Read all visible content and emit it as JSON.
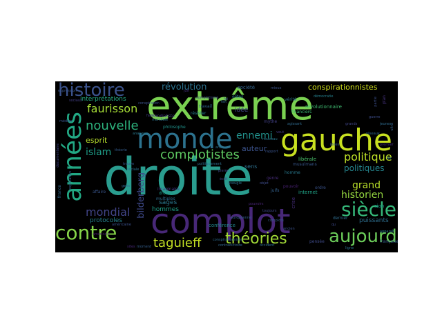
{
  "wordcloud": {
    "background": "#000000",
    "colormap": "viridis",
    "words": [
      {
        "text": "droite",
        "color": "#2a9d8f"
      },
      {
        "text": "extrême",
        "color": "#7ad151"
      },
      {
        "text": "complot",
        "color": "#482878"
      },
      {
        "text": "gauche",
        "color": "#c8e020"
      },
      {
        "text": "années",
        "color": "#22a884"
      },
      {
        "text": "monde",
        "color": "#2c728e"
      },
      {
        "text": "histoire",
        "color": "#3b528b"
      },
      {
        "text": "siècle",
        "color": "#35b779"
      },
      {
        "text": "contre",
        "color": "#86d549"
      },
      {
        "text": "aujourd",
        "color": "#6ccd5a"
      },
      {
        "text": "théories",
        "color": "#a2da37"
      },
      {
        "text": "taguieff",
        "color": "#c2df23"
      },
      {
        "text": "complotistes",
        "color": "#5ec962"
      },
      {
        "text": "nouvelle",
        "color": "#2db27d"
      },
      {
        "text": "faurisson",
        "color": "#a5db36"
      },
      {
        "text": "politique",
        "color": "#bddf26"
      },
      {
        "text": "historien",
        "color": "#95d840"
      },
      {
        "text": "mondial",
        "color": "#414487"
      },
      {
        "text": "islam",
        "color": "#1f9e89"
      },
      {
        "text": "ennemi",
        "color": "#21918c"
      },
      {
        "text": "grand",
        "color": "#b8de29"
      },
      {
        "text": "révolution",
        "color": "#2c728e"
      },
      {
        "text": "conspirationnistes",
        "color": "#d2e21b"
      },
      {
        "text": "politiques",
        "color": "#25858e"
      },
      {
        "text": "auteur",
        "color": "#3b528b"
      },
      {
        "text": "esprit",
        "color": "#b5de2b"
      },
      {
        "text": "bilderberg",
        "color": "#3e4989"
      },
      {
        "text": "sages",
        "color": "#2a788e"
      },
      {
        "text": "protocoles",
        "color": "#26828e"
      },
      {
        "text": "hommes",
        "color": "#1fa088"
      },
      {
        "text": "interprétations",
        "color": "#25ac82"
      },
      {
        "text": "conférence",
        "color": "#23898e"
      },
      {
        "text": "sens",
        "color": "#2d708e"
      },
      {
        "text": "idée",
        "color": "#3f4788"
      },
      {
        "text": "société",
        "color": "#33638d"
      },
      {
        "text": "libérale",
        "color": "#4ac16d"
      },
      {
        "text": "musulmans",
        "color": "#38588c"
      },
      {
        "text": "internet",
        "color": "#20a386"
      },
      {
        "text": "puissants",
        "color": "#2e6e8e"
      },
      {
        "text": "révolutionnaire",
        "color": "#40bd72"
      },
      {
        "text": "financiers",
        "color": "#3dbc74"
      },
      {
        "text": "mythe",
        "color": "#424086"
      },
      {
        "text": "élites",
        "color": "#287c8e"
      },
      {
        "text": "vérité",
        "color": "#2b758e"
      },
      {
        "text": "travail",
        "color": "#31678e"
      },
      {
        "text": "philosophe",
        "color": "#20938c"
      },
      {
        "text": "américain",
        "color": "#481a6c"
      },
      {
        "text": "affaire",
        "color": "#39558c"
      },
      {
        "text": "imaginaire",
        "color": "#443983"
      },
      {
        "text": "droites",
        "color": "#1e9c89"
      },
      {
        "text": "multiples",
        "color": "#2e6d8e"
      },
      {
        "text": "américaine",
        "color": "#3b518b"
      },
      {
        "text": "mondialiste",
        "color": "#453781"
      },
      {
        "text": "dernier",
        "color": "#2f6c8e"
      },
      {
        "text": "pensée",
        "color": "#3e4a89"
      },
      {
        "text": "française",
        "color": "#355e8d"
      },
      {
        "text": "crise",
        "color": "#472e7c"
      },
      {
        "text": "ordre",
        "color": "#3a538b"
      },
      {
        "text": "juifs",
        "color": "#34618d"
      },
      {
        "text": "pouvoir",
        "color": "#482173"
      },
      {
        "text": "homme",
        "color": "#29798e"
      },
      {
        "text": "sion",
        "color": "#1e9b8a"
      },
      {
        "text": "france",
        "color": "#31688e"
      },
      {
        "text": "démocratie",
        "color": "#26818e"
      },
      {
        "text": "mieux",
        "color": "#3b528b"
      },
      {
        "text": "analyses",
        "color": "#2a788e"
      },
      {
        "text": "résister",
        "color": "#27808e"
      },
      {
        "text": "genre",
        "color": "#472c7a"
      },
      {
        "text": "objet",
        "color": "#3e4c8a"
      },
      {
        "text": "écrit",
        "color": "#404588"
      },
      {
        "text": "pierre",
        "color": "#3f4889"
      },
      {
        "text": "conspirationniste",
        "color": "#2f6b8e"
      },
      {
        "text": "moment",
        "color": "#355f8d"
      },
      {
        "text": "plan",
        "color": "#46337f"
      },
      {
        "text": "partie",
        "color": "#3c4f8a"
      },
      {
        "text": "faire",
        "color": "#424186"
      },
      {
        "text": "fait",
        "color": "#31688e"
      },
      {
        "text": "juif",
        "color": "#46327e"
      },
      {
        "text": "mondiale",
        "color": "#2d718e"
      },
      {
        "text": "foi",
        "color": "#38598c"
      },
      {
        "text": "agissant",
        "color": "#306a8e"
      },
      {
        "text": "qu",
        "color": "#3e4989"
      },
      {
        "text": "explication",
        "color": "#33628d"
      },
      {
        "text": "ans",
        "color": "#2c738e"
      },
      {
        "text": "ligne",
        "color": "#2d708e"
      },
      {
        "text": "ultra",
        "color": "#34608d"
      },
      {
        "text": "sites",
        "color": "#482878"
      },
      {
        "text": "rapport",
        "color": "#3a548c"
      },
      {
        "text": "expression",
        "color": "#39568c"
      },
      {
        "text": "contradictoire",
        "color": "#31688e"
      },
      {
        "text": "aveugle",
        "color": "#2c728e"
      },
      {
        "text": "complotisme",
        "color": "#3f4788"
      },
      {
        "text": "sociaux",
        "color": "#433e85"
      },
      {
        "text": "médias",
        "color": "#39568c"
      },
      {
        "text": "documentaire",
        "color": "#414487"
      },
      {
        "text": "complots",
        "color": "#365c8d"
      },
      {
        "text": "jeunes",
        "color": "#2f6c8e"
      },
      {
        "text": "réseaux",
        "color": "#31688e"
      },
      {
        "text": "théorie",
        "color": "#365d8d"
      },
      {
        "text": "politiquement",
        "color": "#2e6e8e"
      },
      {
        "text": "conspiration",
        "color": "#3b528b"
      },
      {
        "text": "veut",
        "color": "#443a83"
      },
      {
        "text": "nouveau",
        "color": "#2a778e"
      },
      {
        "text": "premier",
        "color": "#46307e"
      },
      {
        "text": "fer",
        "color": "#2b748e"
      },
      {
        "text": "toujours",
        "color": "#3f4889"
      },
      {
        "text": "européenne",
        "color": "#34608d"
      },
      {
        "text": "pouvoirs",
        "color": "#482475"
      },
      {
        "text": "ancien",
        "color": "#3b518b"
      },
      {
        "text": "occident",
        "color": "#2e6f8e"
      },
      {
        "text": "idées",
        "color": "#365c8d"
      },
      {
        "text": "grands",
        "color": "#404688"
      },
      {
        "text": "guerre",
        "color": "#3d4d8a"
      },
      {
        "text": "apparaît",
        "color": "#2a788e"
      },
      {
        "text": "trouve",
        "color": "#38588c"
      },
      {
        "text": "sociale",
        "color": "#2c728e"
      },
      {
        "text": "gens",
        "color": "#31688e"
      }
    ]
  }
}
